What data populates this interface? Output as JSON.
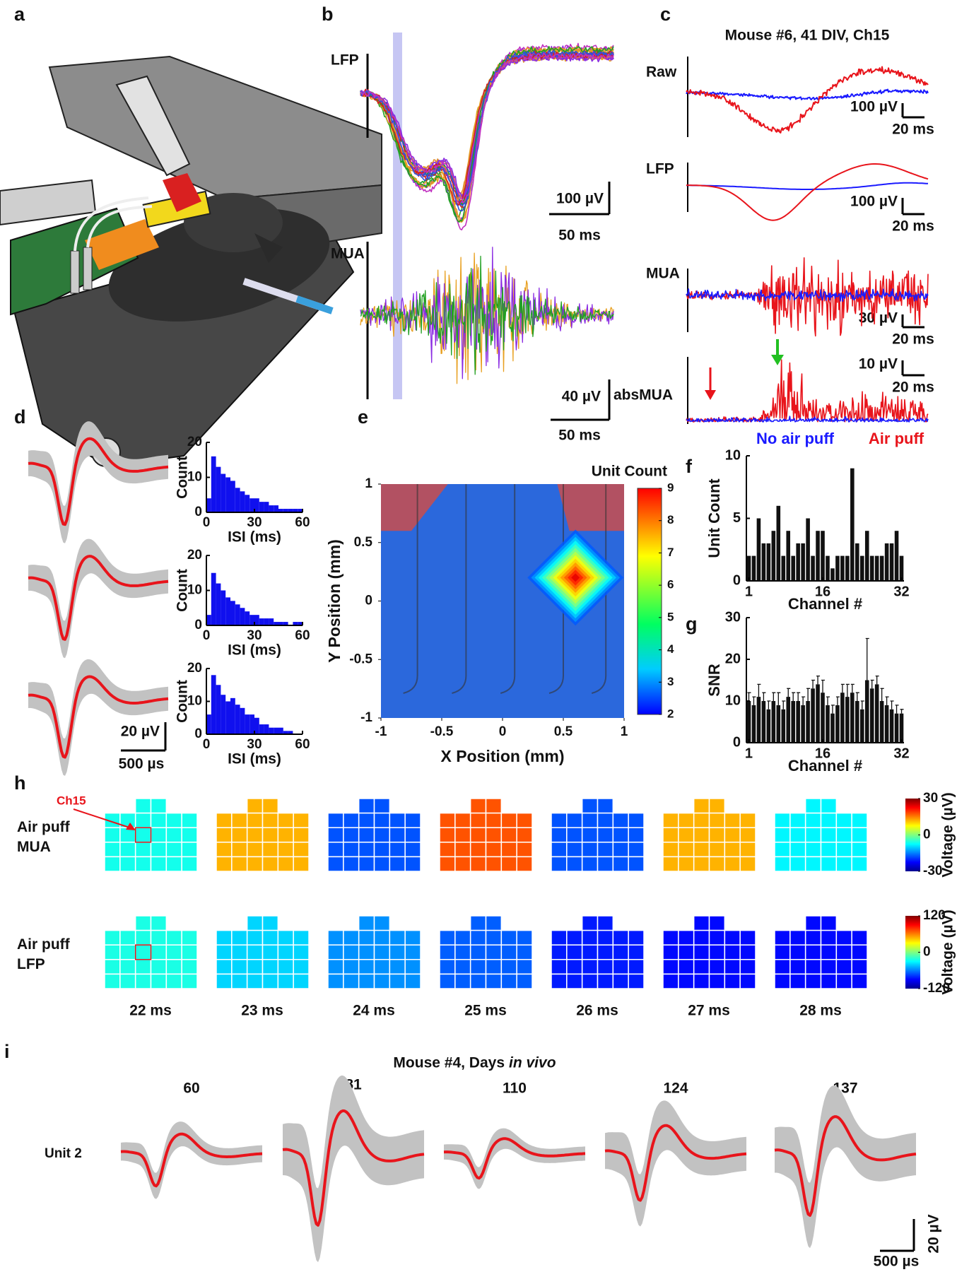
{
  "figure": {
    "panel_labels": [
      "a",
      "b",
      "c",
      "d",
      "e",
      "f",
      "g",
      "h",
      "i"
    ],
    "b": {
      "lfp_label": "LFP",
      "mua_label": "MUA",
      "lfp_scale": [
        "100 µV",
        "50 ms"
      ],
      "mua_scale": [
        "40 µV",
        "50 ms"
      ]
    },
    "c": {
      "title": "Mouse #6, 41 DIV, Ch15",
      "rows": [
        {
          "label": "Raw",
          "scale": [
            "100 µV",
            "20 ms"
          ]
        },
        {
          "label": "LFP",
          "scale": [
            "100 µV",
            "20 ms"
          ]
        },
        {
          "label": "MUA",
          "scale": [
            "30 µV",
            "20 ms"
          ]
        },
        {
          "label": "absMUA",
          "scale": [
            "10 µV",
            "20 ms"
          ]
        }
      ],
      "legend": [
        {
          "name": "No air puff",
          "color": "#1a1aff"
        },
        {
          "name": "Air puff",
          "color": "#e8141b"
        }
      ]
    },
    "d": {
      "scale": [
        "20 µV",
        "500 µs"
      ]
    },
    "h": {
      "marker_label": "Ch15"
    },
    "i": {
      "title": [
        "Mouse #4, Days",
        "in vivo"
      ],
      "days": [
        "60",
        "81",
        "110",
        "124",
        "137"
      ],
      "unit_label": "Unit 2",
      "scale": [
        "20 µV",
        "500 µs"
      ]
    }
  },
  "chart_data": [
    {
      "type": "histogram",
      "x_label": "ISI (ms)",
      "y_label": "Count",
      "color": "#1010ee",
      "bins": [
        0,
        3,
        6,
        9,
        12,
        15,
        18,
        21,
        24,
        27,
        30,
        33,
        36,
        39,
        42,
        45,
        48,
        51,
        54,
        57,
        60
      ],
      "counts": [
        4,
        16,
        13,
        11,
        10,
        9,
        7,
        6,
        5,
        4,
        4,
        3,
        3,
        2,
        2,
        1,
        1,
        1,
        1,
        1
      ],
      "xlim": [
        0,
        60
      ],
      "ylim": [
        0,
        20
      ],
      "xticks": [
        0,
        30,
        60
      ],
      "yticks": [
        0,
        10,
        20
      ]
    },
    {
      "type": "histogram",
      "x_label": "ISI (ms)",
      "y_label": "Count",
      "color": "#1010ee",
      "bins": [
        0,
        3,
        6,
        9,
        12,
        15,
        18,
        21,
        24,
        27,
        30,
        33,
        36,
        39,
        42,
        45,
        48,
        51,
        54,
        57,
        60
      ],
      "counts": [
        3,
        15,
        12,
        10,
        8,
        7,
        6,
        5,
        4,
        3,
        3,
        2,
        2,
        2,
        1,
        1,
        1,
        0,
        1,
        1
      ],
      "xlim": [
        0,
        60
      ],
      "ylim": [
        0,
        20
      ],
      "xticks": [
        0,
        30,
        60
      ],
      "yticks": [
        0,
        10,
        20
      ]
    },
    {
      "type": "histogram",
      "x_label": "ISI (ms)",
      "y_label": "Count",
      "color": "#1010ee",
      "bins": [
        0,
        3,
        6,
        9,
        12,
        15,
        18,
        21,
        24,
        27,
        30,
        33,
        36,
        39,
        42,
        45,
        48,
        51,
        54,
        57,
        60
      ],
      "counts": [
        6,
        18,
        15,
        12,
        10,
        11,
        9,
        8,
        6,
        6,
        5,
        3,
        3,
        2,
        2,
        2,
        1,
        1,
        0,
        0
      ],
      "xlim": [
        0,
        60
      ],
      "ylim": [
        0,
        20
      ],
      "xticks": [
        0,
        30,
        60
      ],
      "yticks": [
        0,
        10,
        20
      ]
    },
    {
      "type": "map",
      "x_label": "X Position (mm)",
      "y_label": "Y Position (mm)",
      "colorbar_label": "Unit Count",
      "xlim": [
        -1,
        1
      ],
      "ylim": [
        -1,
        1
      ],
      "xticks": [
        -1,
        -0.5,
        0,
        0.5,
        1
      ],
      "yticks": [
        -1,
        -0.5,
        0,
        0.5,
        1
      ],
      "clim": [
        2,
        9
      ],
      "cticks": [
        2,
        3,
        4,
        5,
        6,
        7,
        8,
        9
      ],
      "base_value": 3,
      "top_edge_value": 9,
      "peak": {
        "x": 0.6,
        "y": 0.2,
        "value": 9
      }
    },
    {
      "type": "bar",
      "x_label": "Channel #",
      "y_label": "Unit Count",
      "color": "#111111",
      "x": [
        1,
        2,
        3,
        4,
        5,
        6,
        7,
        8,
        9,
        10,
        11,
        12,
        13,
        14,
        15,
        16,
        17,
        18,
        19,
        20,
        21,
        22,
        23,
        24,
        25,
        26,
        27,
        28,
        29,
        30,
        31,
        32
      ],
      "values": [
        2,
        2,
        5,
        3,
        3,
        4,
        6,
        2,
        4,
        2,
        3,
        3,
        5,
        2,
        4,
        4,
        2,
        1,
        2,
        2,
        2,
        9,
        3,
        2,
        4,
        2,
        2,
        2,
        3,
        3,
        4,
        2
      ],
      "xlim": [
        0.5,
        32.5
      ],
      "ylim": [
        0,
        10
      ],
      "xticks": [
        1,
        16,
        32
      ],
      "yticks": [
        0,
        5,
        10
      ]
    },
    {
      "type": "bar",
      "x_label": "Channel #",
      "y_label": "SNR",
      "color": "#111111",
      "x": [
        1,
        2,
        3,
        4,
        5,
        6,
        7,
        8,
        9,
        10,
        11,
        12,
        13,
        14,
        15,
        16,
        17,
        18,
        19,
        20,
        21,
        22,
        23,
        24,
        25,
        26,
        27,
        28,
        29,
        30,
        31,
        32
      ],
      "values": [
        10,
        9,
        11,
        10,
        8,
        10,
        9,
        8,
        11,
        10,
        10,
        9,
        10,
        13,
        14,
        12,
        9,
        7,
        9,
        12,
        11,
        12,
        10,
        8,
        15,
        13,
        14,
        10,
        9,
        8,
        7,
        7
      ],
      "errors": [
        2,
        2,
        3,
        2,
        2,
        2,
        3,
        2,
        2,
        2,
        2,
        2,
        3,
        2,
        2,
        3,
        2,
        2,
        2,
        2,
        3,
        2,
        2,
        2,
        10,
        2,
        2,
        3,
        2,
        2,
        2,
        1
      ],
      "xlim": [
        0.5,
        32.5
      ],
      "ylim": [
        0,
        30
      ],
      "xticks": [
        1,
        16,
        32
      ],
      "yticks": [
        0,
        10,
        20,
        30
      ]
    },
    {
      "type": "grid",
      "categories": [
        "22 ms",
        "23 ms",
        "24 ms",
        "25 ms",
        "26 ms",
        "27 ms",
        "28 ms"
      ],
      "series": [
        {
          "name": [
            "Air puff",
            "MUA"
          ],
          "values": [
            -8,
            15,
            -22,
            22,
            -22,
            15,
            -10
          ],
          "clim": [
            -30,
            30
          ],
          "cticks": [
            30,
            0,
            -30
          ],
          "colorbar_label": "Voltage (µV)"
        },
        {
          "name": [
            "Air puff",
            "LFP"
          ],
          "values": [
            -30,
            -50,
            -70,
            -85,
            -105,
            -110,
            -110
          ],
          "clim": [
            -120,
            120
          ],
          "cticks": [
            120,
            0,
            -120
          ],
          "colorbar_label": "Voltage (µV)"
        }
      ]
    }
  ]
}
